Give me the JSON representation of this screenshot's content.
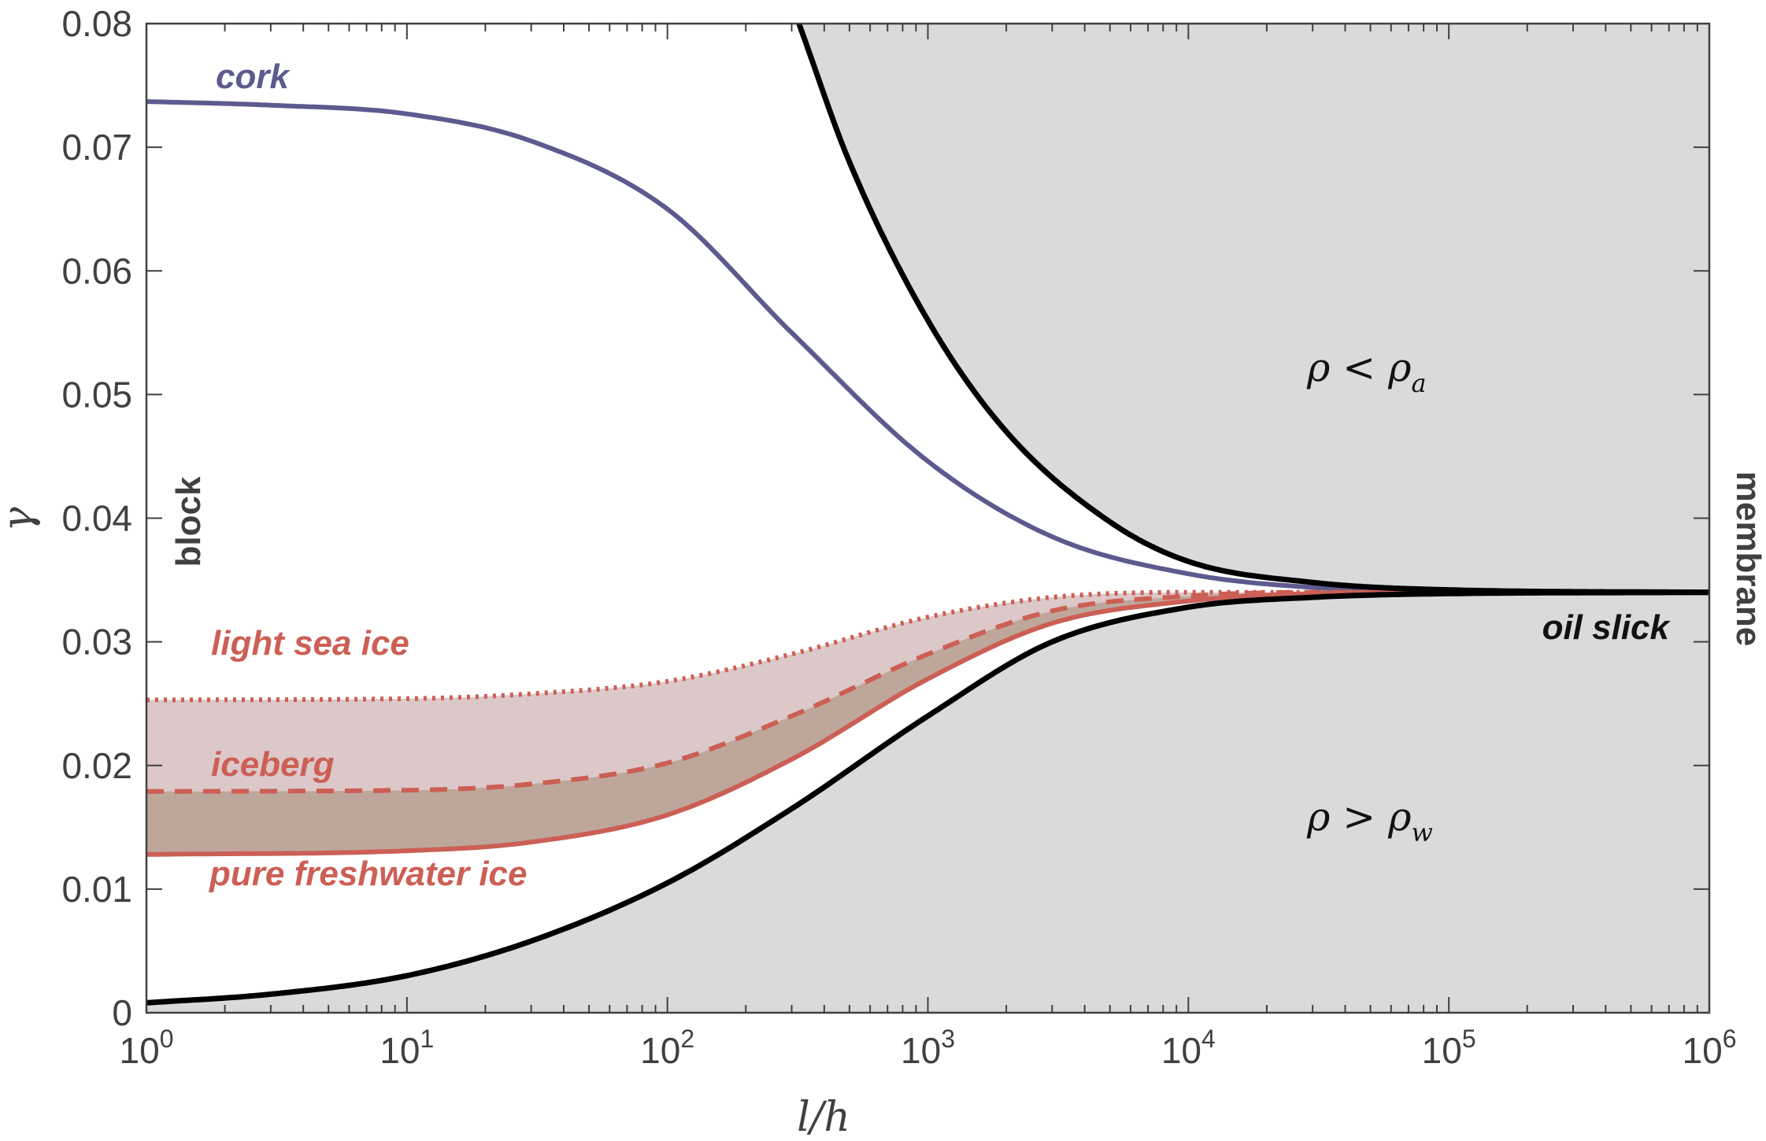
{
  "chart_data": {
    "type": "line",
    "xlabel": "l/h",
    "ylabel": "γ",
    "xscale": "log",
    "xlim": [
      1,
      1000000
    ],
    "ylim": [
      0,
      0.08
    ],
    "x_ticks": [
      {
        "base": "10",
        "exp": "0"
      },
      {
        "base": "10",
        "exp": "1"
      },
      {
        "base": "10",
        "exp": "2"
      },
      {
        "base": "10",
        "exp": "3"
      },
      {
        "base": "10",
        "exp": "4"
      },
      {
        "base": "10",
        "exp": "5"
      },
      {
        "base": "10",
        "exp": "6"
      }
    ],
    "y_ticks": [
      "0",
      "0.01",
      "0.02",
      "0.03",
      "0.04",
      "0.05",
      "0.06",
      "0.07",
      "0.08"
    ],
    "grid": false,
    "series": [
      {
        "name": "cork",
        "color": "#5c5a8e",
        "style": "solid",
        "x": [
          1,
          3,
          10,
          30,
          100,
          300,
          1000,
          3000,
          10000,
          30000,
          100000,
          1000000
        ],
        "y": [
          0.0737,
          0.0734,
          0.0727,
          0.0705,
          0.065,
          0.055,
          0.0446,
          0.0385,
          0.0355,
          0.0344,
          0.0341,
          0.034
        ]
      },
      {
        "name": "light sea ice",
        "color": "#cc5f55",
        "style": "dotted",
        "x": [
          1,
          10,
          30,
          100,
          300,
          1000,
          3000,
          10000,
          30000,
          100000,
          1000000
        ],
        "y": [
          0.0253,
          0.0254,
          0.0258,
          0.0268,
          0.029,
          0.032,
          0.0336,
          0.034,
          0.034,
          0.034,
          0.034
        ]
      },
      {
        "name": "iceberg",
        "color": "#cc5f55",
        "style": "dashed",
        "x": [
          1,
          10,
          30,
          100,
          300,
          1000,
          3000,
          10000,
          30000,
          100000,
          1000000
        ],
        "y": [
          0.0179,
          0.018,
          0.0185,
          0.0202,
          0.024,
          0.029,
          0.0325,
          0.0337,
          0.034,
          0.034,
          0.034
        ]
      },
      {
        "name": "pure freshwater ice",
        "color": "#cc5f55",
        "style": "solid",
        "x": [
          1,
          10,
          30,
          100,
          300,
          1000,
          3000,
          10000,
          30000,
          100000,
          1000000
        ],
        "y": [
          0.0128,
          0.0131,
          0.0138,
          0.016,
          0.0205,
          0.027,
          0.0315,
          0.0333,
          0.0339,
          0.034,
          0.034
        ]
      },
      {
        "name": "oil slick",
        "color": "#000000",
        "style": "solid",
        "x": [
          1,
          3,
          10,
          30,
          100,
          300,
          1000,
          3000,
          10000,
          30000,
          100000,
          1000000
        ],
        "y": [
          0.0008,
          0.0015,
          0.003,
          0.0058,
          0.0105,
          0.0165,
          0.024,
          0.03,
          0.0328,
          0.0336,
          0.0339,
          0.034
        ]
      },
      {
        "name": "",
        "color": "#000000",
        "style": "solid",
        "x": [
          320,
          500,
          1000,
          2000,
          5000,
          10000,
          30000,
          100000,
          1000000
        ],
        "y": [
          0.08,
          0.0688,
          0.056,
          0.047,
          0.0397,
          0.0365,
          0.0348,
          0.0342,
          0.034
        ]
      }
    ],
    "shaded_regions": [
      {
        "label": "ρ < ρ",
        "label_sub": "a",
        "fill": "#d9dadc",
        "bounded_by": "upper black curve, above"
      },
      {
        "label": "ρ > ρ",
        "label_sub": "w",
        "fill": "#d9dadc",
        "bounded_by": "lower black curve, below"
      }
    ],
    "annotations": {
      "cork": "cork",
      "light_sea_ice": "light sea ice",
      "iceberg": "iceberg",
      "pure_freshwater_ice": "pure freshwater ice",
      "oil_slick": "oil slick",
      "block": "block",
      "membrane": "membrane"
    },
    "colors": {
      "region_fill": "#d9dadc",
      "ice_band_light": "#dcc8c9",
      "ice_band_dark": "#bea79a",
      "axis": "#404040"
    }
  }
}
